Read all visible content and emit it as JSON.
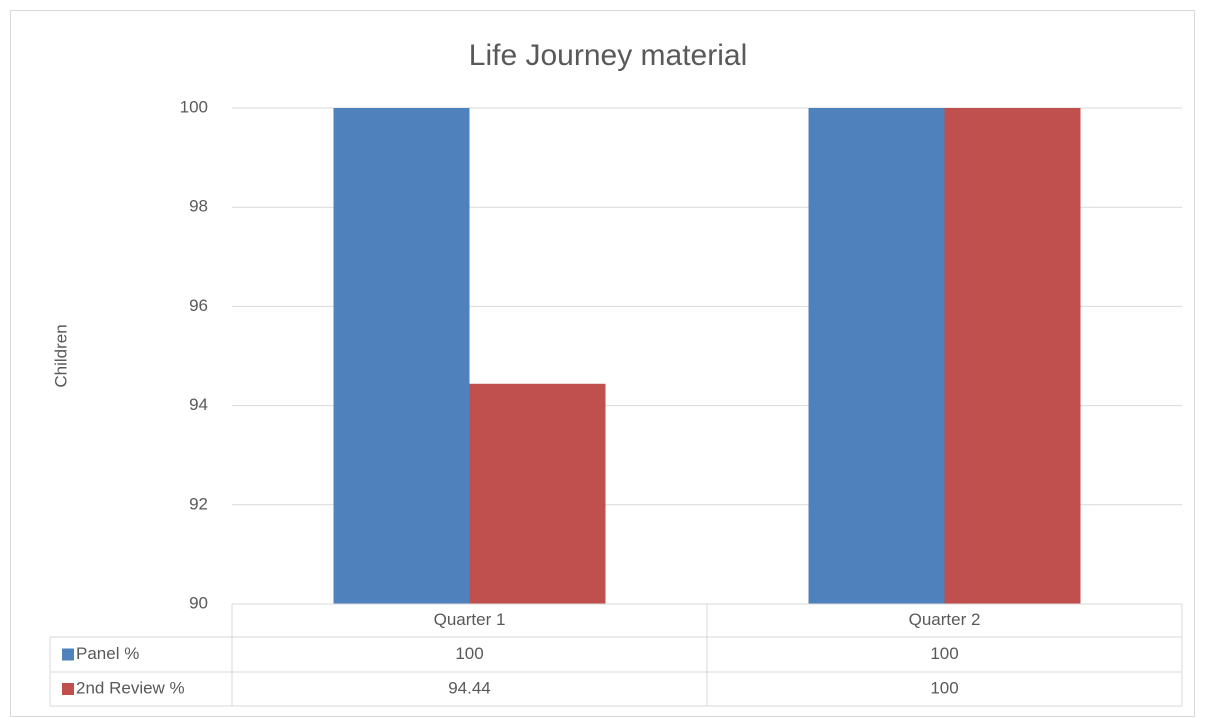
{
  "chart_data": {
    "type": "bar",
    "title": "Life Journey material",
    "y_label": "Children",
    "categories": [
      "Quarter 1",
      "Quarter 2"
    ],
    "series": [
      {
        "name": "Panel %",
        "color": "#4f81bd",
        "values": [
          100,
          100
        ]
      },
      {
        "name": "2nd Review %",
        "color": "#c0504d",
        "values": [
          94.44,
          100
        ]
      }
    ],
    "ylim": [
      90,
      100
    ],
    "yticks": [
      90,
      92,
      94,
      96,
      98,
      100
    ],
    "grid": true,
    "data_table": true
  }
}
